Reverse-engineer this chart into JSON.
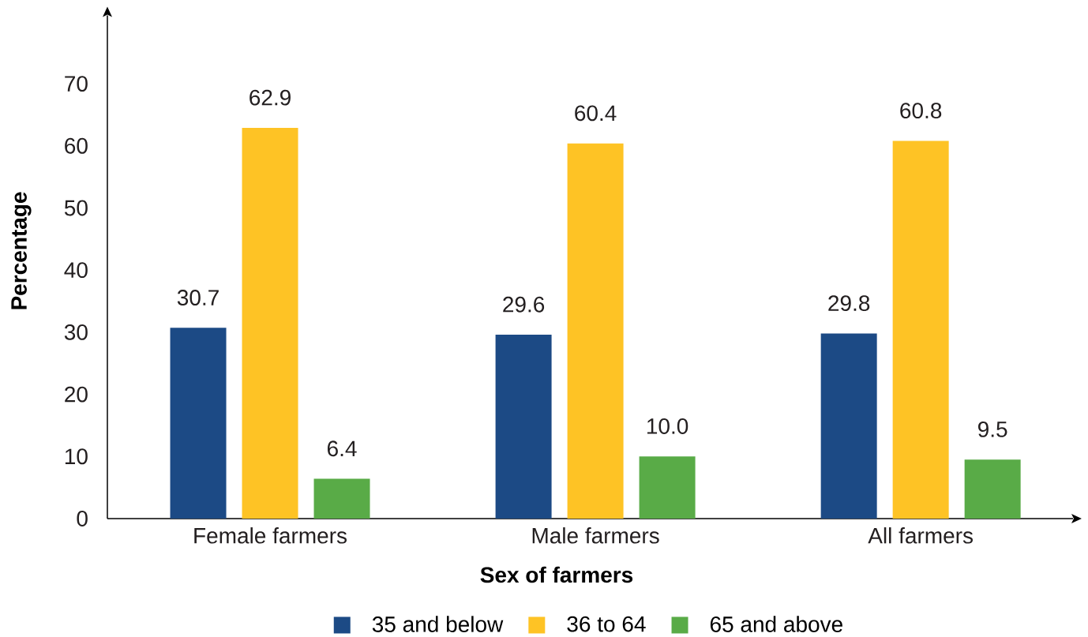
{
  "chart_data": {
    "type": "bar",
    "xlabel": "Sex of farmers",
    "ylabel": "Percentage",
    "categories": [
      "Female farmers",
      "Male farmers",
      "All farmers"
    ],
    "series": [
      {
        "name": "35 and below",
        "color": "#1c4a85",
        "values": [
          30.7,
          29.6,
          29.8
        ],
        "value_labels": [
          "30.7",
          "29.6",
          "29.8"
        ]
      },
      {
        "name": "36 to 64",
        "color": "#fec325",
        "values": [
          62.9,
          60.4,
          60.8
        ],
        "value_labels": [
          "62.9",
          "60.4",
          "60.8"
        ]
      },
      {
        "name": "65 and above",
        "color": "#59ab47",
        "values": [
          6.4,
          10.0,
          9.5
        ],
        "value_labels": [
          "6.4",
          "10.0",
          "9.5"
        ]
      }
    ],
    "ylim": [
      0,
      81
    ],
    "yticks": [
      0,
      10,
      20,
      30,
      40,
      50,
      60,
      70
    ],
    "legend": "bottom"
  }
}
